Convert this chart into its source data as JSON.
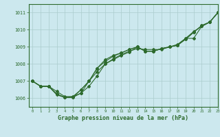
{
  "title": "Graphe pression niveau de la mer (hPa)",
  "bg_color": "#cce8ee",
  "grid_color": "#aacccc",
  "line_color": "#2d6a2d",
  "xlim": [
    -0.5,
    23
  ],
  "ylim": [
    1005.5,
    1011.5
  ],
  "yticks": [
    1006,
    1007,
    1008,
    1009,
    1010,
    1011
  ],
  "xticks": [
    0,
    1,
    2,
    3,
    4,
    5,
    6,
    7,
    8,
    9,
    10,
    11,
    12,
    13,
    14,
    15,
    16,
    17,
    18,
    19,
    20,
    21,
    22,
    23
  ],
  "lines": [
    [
      1007.0,
      1006.7,
      1006.7,
      1006.4,
      1006.1,
      1006.1,
      1006.3,
      1006.7,
      1007.3,
      1008.0,
      1008.3,
      1008.55,
      1008.75,
      1008.9,
      1008.85,
      1008.85,
      1008.85,
      1009.0,
      1009.1,
      1009.5,
      1009.5,
      1010.2,
      1010.45,
      1011.0
    ],
    [
      1007.0,
      1006.7,
      1006.7,
      1006.25,
      1006.05,
      1006.05,
      1006.3,
      1007.0,
      1007.75,
      1008.25,
      1008.5,
      1008.65,
      1008.85,
      1009.0,
      1008.75,
      1008.75,
      1008.9,
      1009.0,
      1009.15,
      1009.5,
      1009.9,
      1010.2,
      1010.45,
      1011.0
    ],
    [
      1007.0,
      1006.7,
      1006.7,
      1006.2,
      1006.05,
      1006.1,
      1006.5,
      1007.0,
      1007.75,
      1008.15,
      1008.45,
      1008.65,
      1008.85,
      1009.0,
      1008.75,
      1008.75,
      1008.9,
      1009.0,
      1009.1,
      1009.45,
      1009.85,
      1010.25,
      1010.45,
      1011.0
    ],
    [
      1007.0,
      1006.7,
      1006.7,
      1006.25,
      1006.05,
      1006.05,
      1006.5,
      1007.0,
      1007.55,
      1008.0,
      1008.25,
      1008.5,
      1008.7,
      1009.0,
      1008.75,
      1008.75,
      1008.9,
      1009.0,
      1009.1,
      1009.45,
      1009.85,
      1010.25,
      1010.45,
      1011.0
    ]
  ]
}
